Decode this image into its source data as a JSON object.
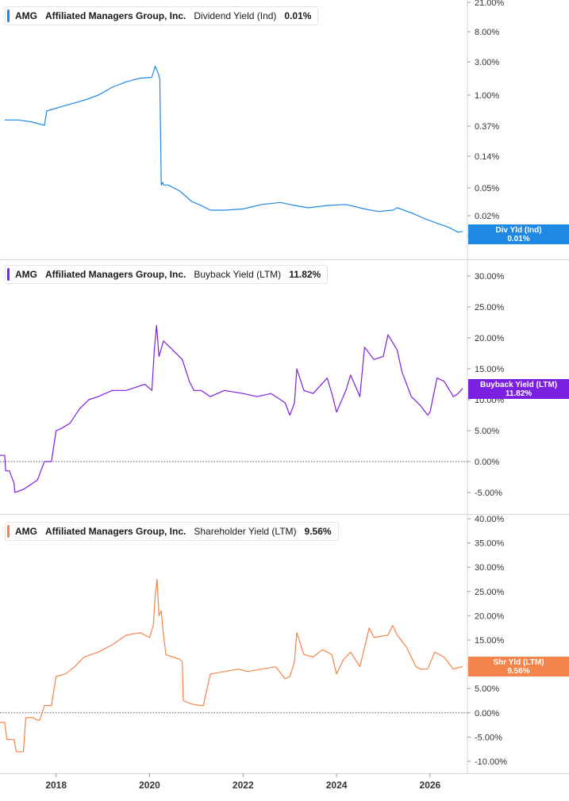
{
  "colors": {
    "dividend": "#1e88e5",
    "buyback": "#7b1fe0",
    "shareholder": "#f4844a",
    "grid": "#d6d6d6",
    "text": "#333333"
  },
  "x_axis": {
    "ticks": [
      "2018",
      "2020",
      "2022",
      "2024",
      "2026"
    ],
    "tick_values": [
      2018,
      2020,
      2022,
      2024,
      2026
    ],
    "range": [
      2016.8,
      2026.8
    ]
  },
  "panels": [
    {
      "ticker": "AMG",
      "company": "Affiliated Managers Group, Inc.",
      "metric": "Dividend Yield (Ind)",
      "value": "0.01%",
      "tag_line1": "Div Yld (Ind)",
      "tag_line2": "0.01%",
      "y_ticks": [
        "21.00%",
        "8.00%",
        "3.00%",
        "1.00%",
        "0.37%",
        "0.14%",
        "0.05%",
        "0.02%",
        "0.01%"
      ]
    },
    {
      "ticker": "AMG",
      "company": "Affiliated Managers Group, Inc.",
      "metric": "Buyback Yield (LTM)",
      "value": "11.82%",
      "tag_line1": "Buyback Yield (LTM)",
      "tag_line2": "11.82%",
      "y_ticks": [
        "30.00%",
        "25.00%",
        "20.00%",
        "15.00%",
        "10.00%",
        "5.00%",
        "0.00%",
        "-5.00%"
      ]
    },
    {
      "ticker": "AMG",
      "company": "Affiliated Managers Group, Inc.",
      "metric": "Shareholder Yield (LTM)",
      "value": "9.56%",
      "tag_line1": "Shr Yld (LTM)",
      "tag_line2": "9.56%",
      "y_ticks": [
        "40.00%",
        "35.00%",
        "30.00%",
        "25.00%",
        "20.00%",
        "15.00%",
        "10.00%",
        "5.00%",
        "0.00%",
        "-5.00%",
        "-10.00%"
      ]
    }
  ],
  "chart_data": [
    {
      "type": "line",
      "scale": "log",
      "ylim": [
        0.0085,
        21
      ],
      "series": [
        {
          "name": "Dividend Yield (Ind)",
          "x": [
            2016.9,
            2017.2,
            2017.5,
            2017.75,
            2017.8,
            2018.2,
            2018.6,
            2018.9,
            2019.2,
            2019.5,
            2019.8,
            2020.05,
            2020.12,
            2020.18,
            2020.22,
            2020.25,
            2020.28,
            2020.3,
            2020.4,
            2020.65,
            2020.9,
            2021.1,
            2021.3,
            2021.6,
            2022.0,
            2022.4,
            2022.8,
            2023.1,
            2023.4,
            2023.8,
            2024.2,
            2024.6,
            2024.9,
            2025.2,
            2025.3,
            2025.6,
            2025.9,
            2026.1,
            2026.4,
            2026.6,
            2026.7
          ],
          "y": [
            0.45,
            0.45,
            0.42,
            0.38,
            0.6,
            0.72,
            0.85,
            1.0,
            1.3,
            1.55,
            1.75,
            1.8,
            2.6,
            2.1,
            1.7,
            0.055,
            0.06,
            0.055,
            0.055,
            0.045,
            0.032,
            0.028,
            0.024,
            0.024,
            0.025,
            0.029,
            0.031,
            0.028,
            0.026,
            0.028,
            0.029,
            0.025,
            0.023,
            0.024,
            0.026,
            0.022,
            0.018,
            0.016,
            0.0135,
            0.0115,
            0.0118
          ]
        }
      ]
    },
    {
      "type": "line",
      "ylim": [
        -8,
        33
      ],
      "series": [
        {
          "name": "Buyback Yield (LTM)",
          "x": [
            2016.8,
            2016.9,
            2016.92,
            2017.0,
            2017.1,
            2017.12,
            2017.3,
            2017.6,
            2017.7,
            2017.75,
            2017.9,
            2018.0,
            2018.1,
            2018.3,
            2018.5,
            2018.7,
            2018.9,
            2019.2,
            2019.5,
            2019.7,
            2019.9,
            2020.05,
            2020.1,
            2020.15,
            2020.2,
            2020.3,
            2020.5,
            2020.7,
            2020.85,
            2020.95,
            2021.1,
            2021.3,
            2021.6,
            2022.0,
            2022.3,
            2022.6,
            2022.9,
            2023.0,
            2023.1,
            2023.15,
            2023.3,
            2023.5,
            2023.8,
            2023.9,
            2024.0,
            2024.2,
            2024.3,
            2024.5,
            2024.6,
            2024.8,
            2025.0,
            2025.1,
            2025.3,
            2025.4,
            2025.6,
            2025.8,
            2025.95,
            2026.0,
            2026.15,
            2026.3,
            2026.5,
            2026.6,
            2026.7
          ],
          "y": [
            1.0,
            1.0,
            -1.5,
            -1.5,
            -3.5,
            -5.0,
            -4.5,
            -3.0,
            -1.0,
            0.0,
            0.0,
            5.0,
            5.3,
            6.2,
            8.5,
            10.0,
            10.5,
            11.5,
            11.5,
            12.0,
            12.5,
            11.5,
            18.0,
            22.0,
            17.0,
            19.5,
            18.0,
            16.5,
            13.0,
            11.5,
            11.5,
            10.5,
            11.5,
            11.0,
            10.5,
            11.0,
            9.5,
            7.5,
            9.5,
            15.0,
            11.5,
            11.0,
            13.5,
            11.0,
            8.0,
            11.5,
            14.0,
            10.5,
            18.5,
            16.5,
            17.0,
            20.5,
            18.0,
            14.5,
            10.5,
            9.0,
            7.5,
            8.0,
            13.5,
            13.0,
            10.5,
            11.0,
            11.82
          ]
        }
      ]
    },
    {
      "type": "line",
      "ylim": [
        -11.5,
        41
      ],
      "series": [
        {
          "name": "Shareholder Yield (LTM)",
          "x": [
            2016.8,
            2016.9,
            2016.95,
            2017.1,
            2017.15,
            2017.3,
            2017.35,
            2017.5,
            2017.6,
            2017.65,
            2017.75,
            2017.9,
            2018.0,
            2018.2,
            2018.4,
            2018.6,
            2018.9,
            2019.2,
            2019.5,
            2019.8,
            2020.0,
            2020.08,
            2020.12,
            2020.16,
            2020.2,
            2020.25,
            2020.3,
            2020.35,
            2020.5,
            2020.65,
            2020.7,
            2020.72,
            2020.9,
            2021.1,
            2021.15,
            2021.3,
            2021.6,
            2021.9,
            2022.1,
            2022.4,
            2022.7,
            2022.9,
            2023.0,
            2023.1,
            2023.15,
            2023.3,
            2023.5,
            2023.7,
            2023.9,
            2024.0,
            2024.15,
            2024.3,
            2024.5,
            2024.7,
            2024.8,
            2025.1,
            2025.2,
            2025.3,
            2025.5,
            2025.7,
            2025.8,
            2025.95,
            2026.1,
            2026.3,
            2026.5,
            2026.7
          ],
          "y": [
            -2.0,
            -2.0,
            -5.5,
            -5.5,
            -8.0,
            -8.0,
            -1.0,
            -1.0,
            -1.5,
            -1.5,
            1.5,
            1.5,
            7.5,
            8.0,
            9.5,
            11.5,
            12.5,
            14.0,
            16.0,
            16.5,
            15.5,
            18.0,
            24.0,
            27.5,
            20.0,
            21.0,
            16.0,
            12.0,
            11.5,
            11.0,
            10.5,
            2.5,
            1.8,
            1.5,
            1.5,
            8.0,
            8.5,
            9.0,
            8.5,
            9.0,
            9.5,
            7.0,
            7.5,
            10.5,
            16.5,
            12.0,
            11.5,
            13.0,
            12.0,
            8.0,
            11.0,
            12.5,
            9.5,
            17.5,
            15.5,
            16.0,
            18.0,
            16.0,
            13.5,
            9.5,
            9.0,
            9.0,
            12.5,
            11.5,
            9.0,
            9.56
          ]
        }
      ]
    }
  ]
}
